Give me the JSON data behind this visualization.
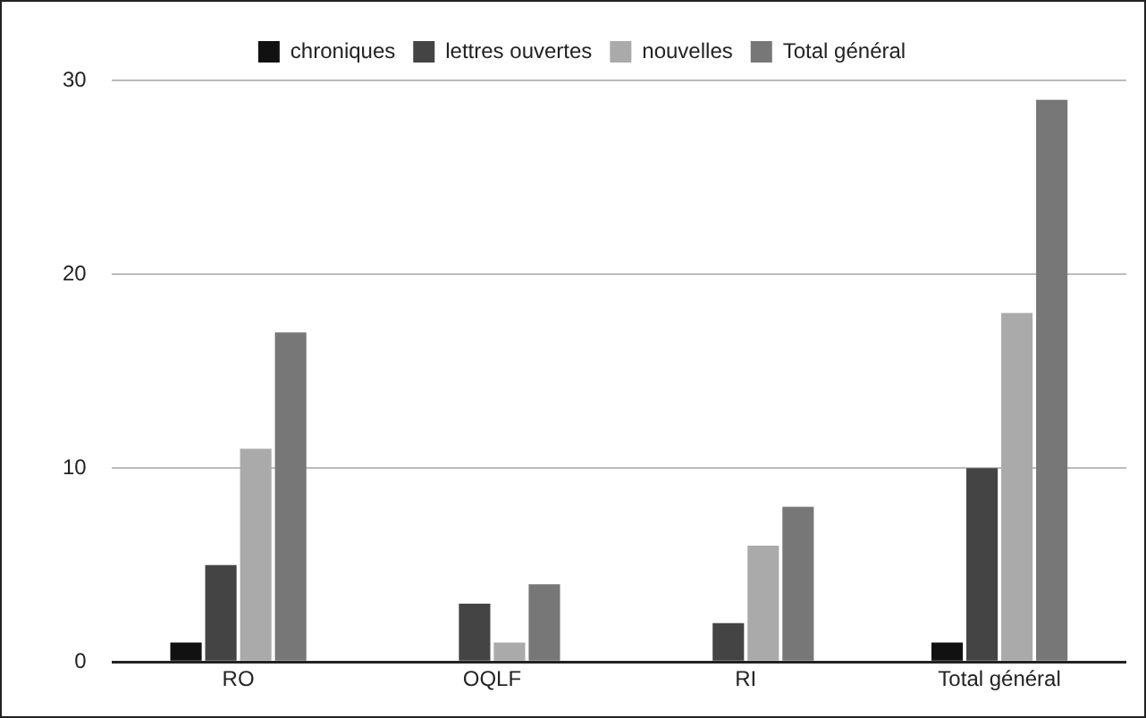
{
  "chart_data": {
    "type": "bar",
    "categories": [
      "RO",
      "OQLF",
      "RI",
      "Total général"
    ],
    "series": [
      {
        "name": "chroniques",
        "color": "#111111",
        "values": [
          1,
          0,
          0,
          1
        ]
      },
      {
        "name": "lettres ouvertes",
        "color": "#444444",
        "values": [
          5,
          3,
          2,
          10
        ]
      },
      {
        "name": "nouvelles",
        "color": "#aaaaaa",
        "values": [
          11,
          1,
          6,
          18
        ]
      },
      {
        "name": "Total général",
        "color": "#777777",
        "values": [
          17,
          4,
          8,
          29
        ]
      }
    ],
    "ylim": [
      0,
      30
    ],
    "yticks": [
      0,
      10,
      20,
      30
    ],
    "grid": "y",
    "legend": "top"
  }
}
